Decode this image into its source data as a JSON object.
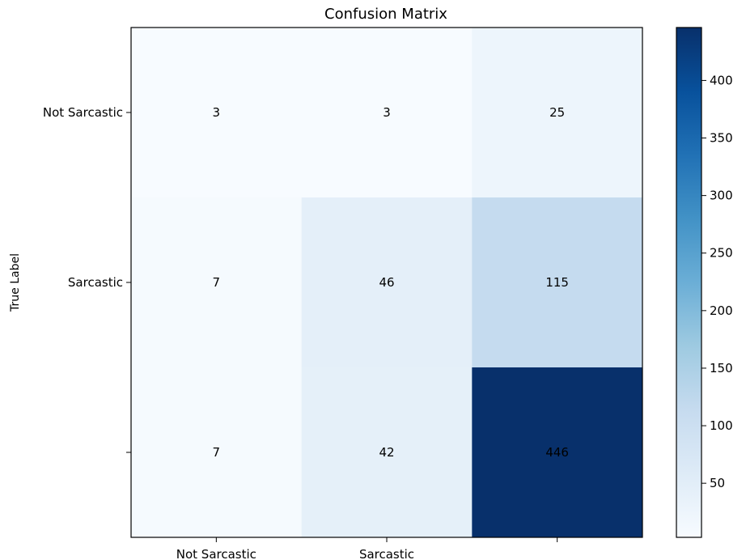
{
  "chart_data": {
    "type": "heatmap",
    "title": "Confusion Matrix",
    "ylabel": "True Label",
    "xlabel": "",
    "x_tick_labels": [
      "Not Sarcastic",
      "Sarcastic",
      ""
    ],
    "y_tick_labels": [
      "Not Sarcastic",
      "Sarcastic",
      ""
    ],
    "matrix": [
      [
        3,
        3,
        25
      ],
      [
        7,
        46,
        115
      ],
      [
        7,
        42,
        446
      ]
    ],
    "colormap": "Blues",
    "colorbar": {
      "range": [
        3,
        446
      ],
      "ticks": [
        50,
        100,
        150,
        200,
        250,
        300,
        350,
        400
      ],
      "tick_labels": [
        "50",
        "100",
        "150",
        "200",
        "250",
        "300",
        "350",
        "400"
      ]
    },
    "grid": false
  }
}
